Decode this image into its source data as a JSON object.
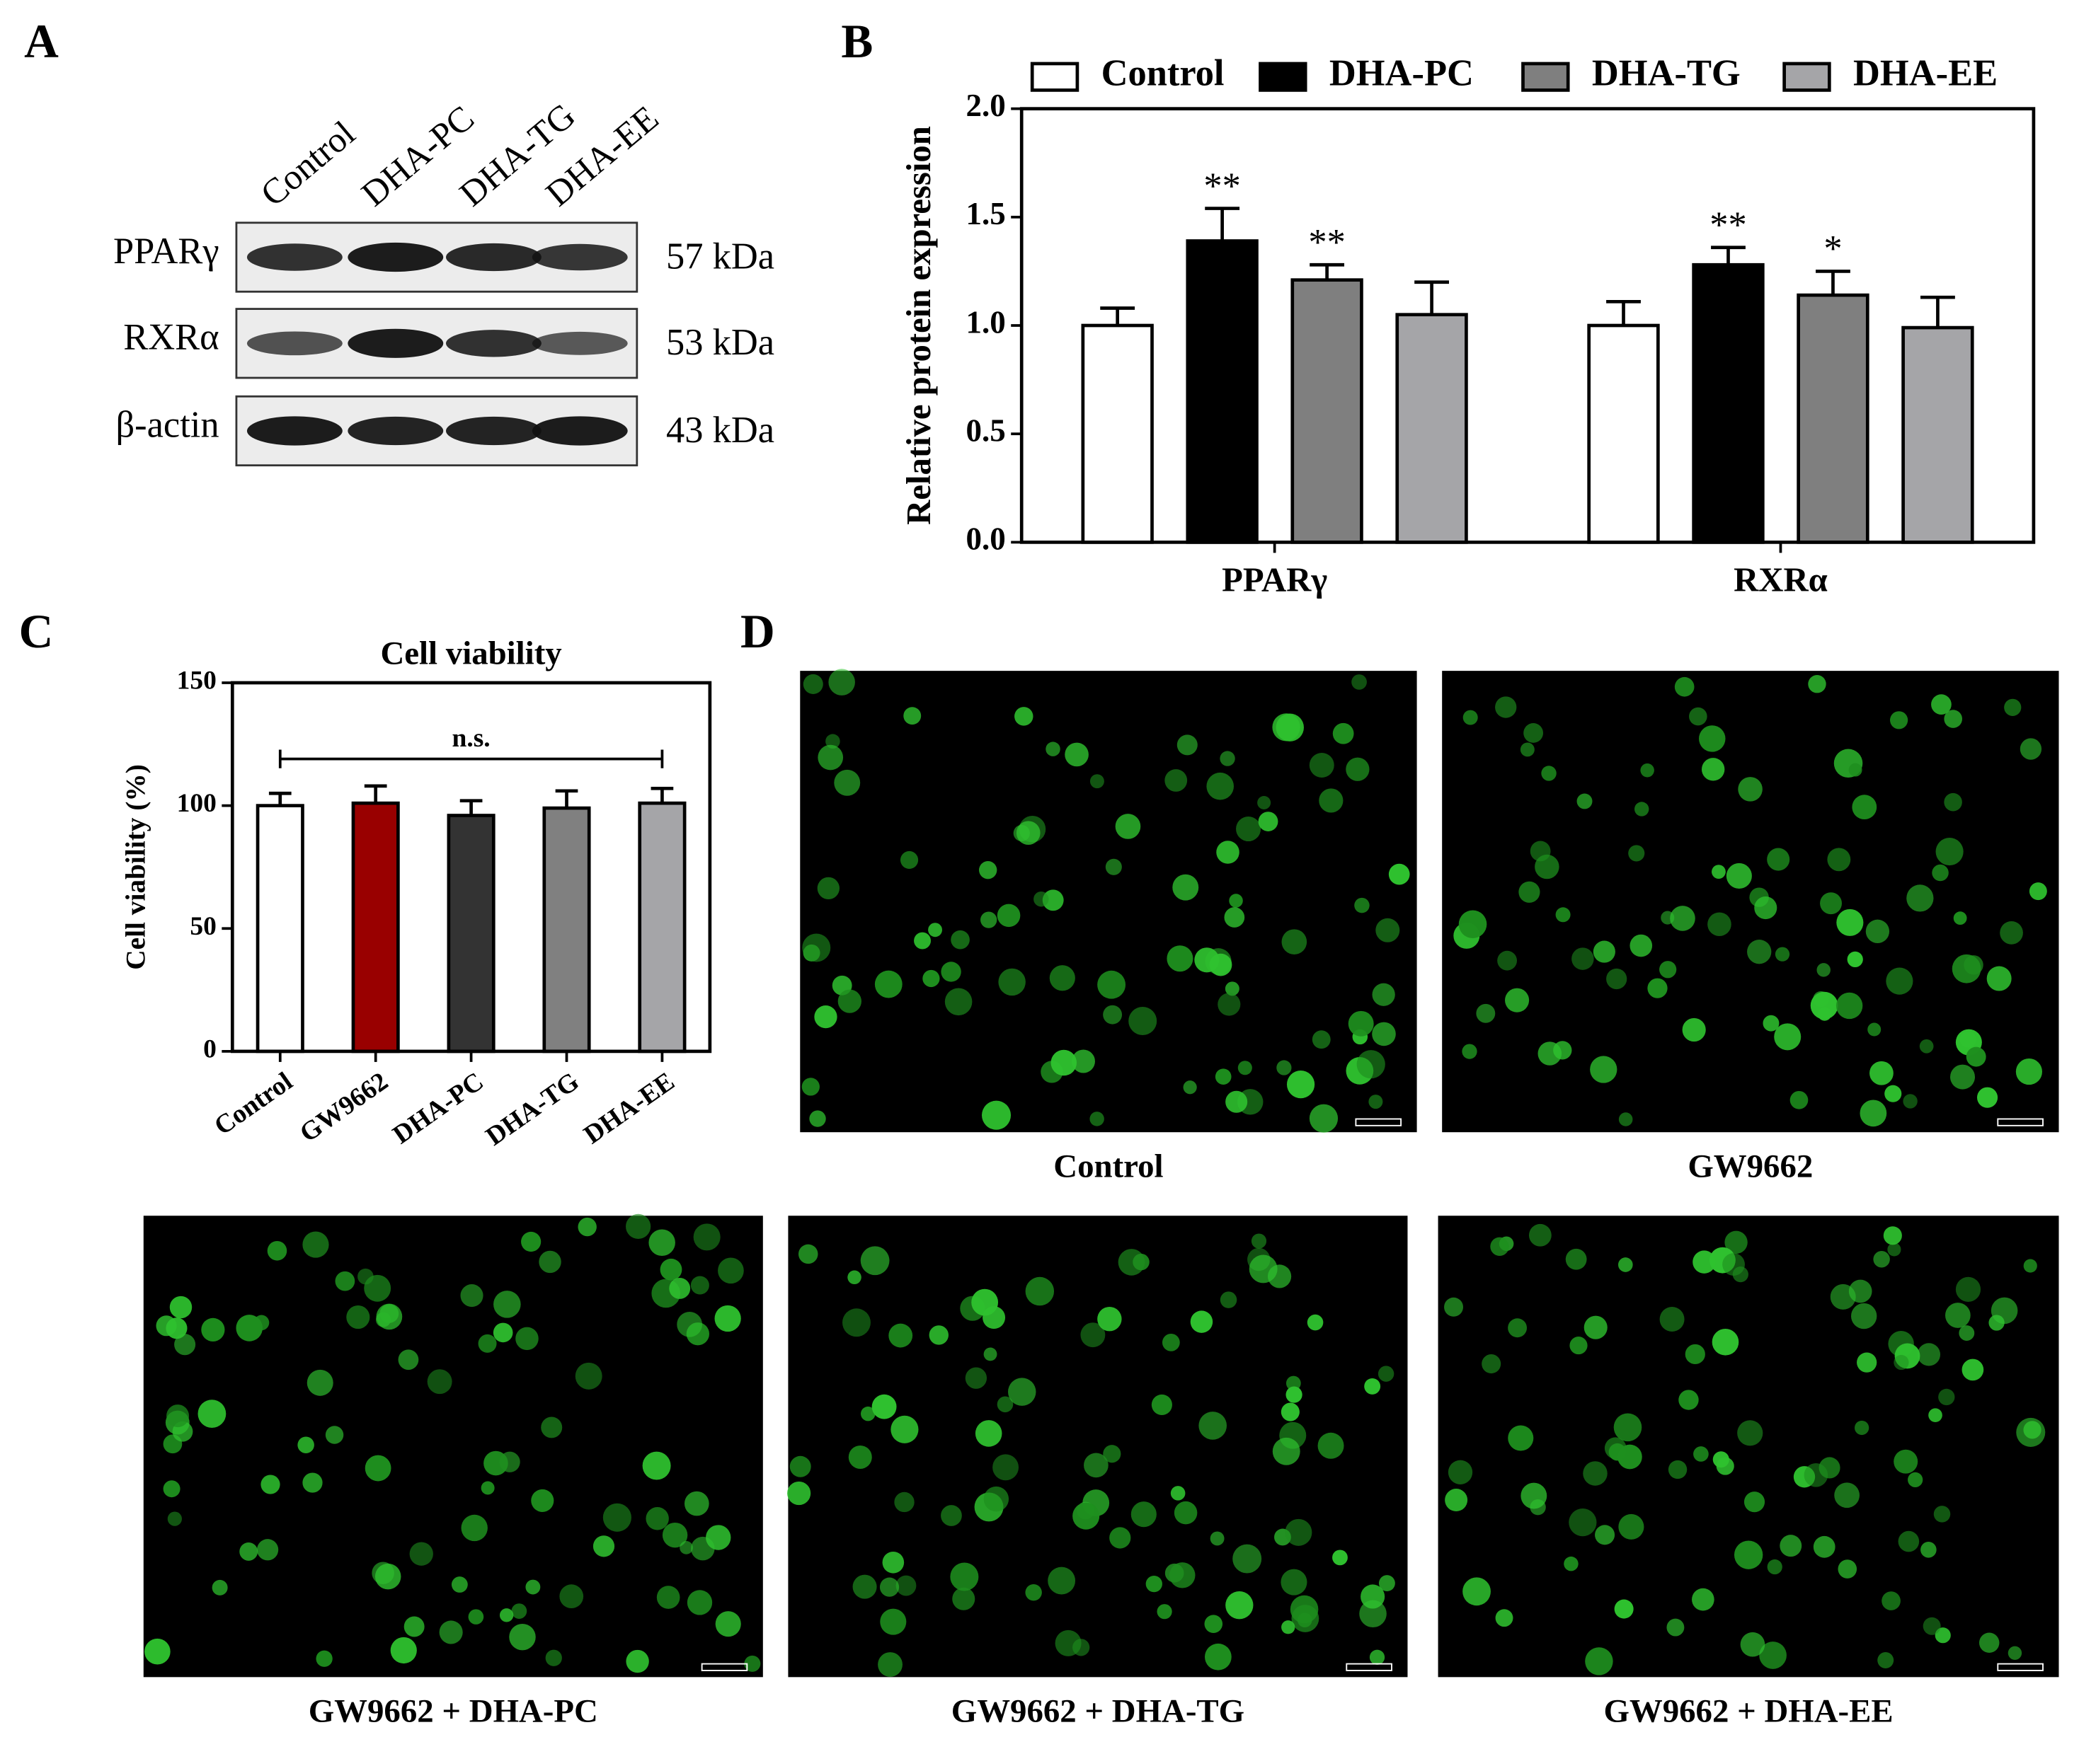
{
  "panel_labels": [
    "A",
    "B",
    "C",
    "D"
  ],
  "blot": {
    "lanes": [
      "Control",
      "DHA-PC",
      "DHA-TG",
      "DHA-EE"
    ],
    "rows": [
      {
        "protein": "PPARγ",
        "size": "57 kDa"
      },
      {
        "protein": "RXRα",
        "size": "53 kDa"
      },
      {
        "protein": "β-actin",
        "size": "43 kDa"
      }
    ]
  },
  "chart_data": [
    {
      "type": "bar",
      "y_label": "Relative protein expression",
      "categories": [
        "PPARγ",
        "RXRα"
      ],
      "series": [
        {
          "name": "Control",
          "color": "#ffffff",
          "values": [
            1.0,
            1.0
          ],
          "errors": [
            0.08,
            0.11
          ]
        },
        {
          "name": "DHA-PC",
          "color": "#000000",
          "values": [
            1.39,
            1.28
          ],
          "errors": [
            0.15,
            0.08
          ],
          "annotations": [
            "**",
            "**"
          ]
        },
        {
          "name": "DHA-TG",
          "color": "#7f7f7f",
          "values": [
            1.21,
            1.14
          ],
          "errors": [
            0.07,
            0.11
          ],
          "annotations": [
            "**",
            "*"
          ]
        },
        {
          "name": "DHA-EE",
          "color": "#a5a5a8",
          "values": [
            1.05,
            0.99
          ],
          "errors": [
            0.15,
            0.14
          ]
        }
      ],
      "ylim": [
        0,
        2
      ],
      "yticks": [
        {
          "value": 0,
          "label": "0.0"
        },
        {
          "value": 0.5,
          "label": "0.5"
        },
        {
          "value": 1,
          "label": "1.0"
        },
        {
          "value": 1.5,
          "label": "1.5"
        },
        {
          "value": 2,
          "label": "2.0"
        }
      ],
      "legend": "top"
    },
    {
      "type": "bar",
      "title": "Cell viability",
      "y_label": "Cell viability (%)",
      "categories": [
        "Control",
        "GW9662",
        "DHA-PC",
        "DHA-TG",
        "DHA-EE"
      ],
      "values": [
        100,
        101,
        96,
        99,
        101
      ],
      "errors": [
        5,
        7,
        6,
        7,
        6
      ],
      "colors": [
        "#ffffff",
        "#990000",
        "#333333",
        "#808080",
        "#a5a5a8"
      ],
      "bracket": {
        "text": "n.s.",
        "y": 119
      },
      "ylim": [
        0,
        150
      ],
      "yticks": [
        0,
        50,
        100,
        150
      ]
    }
  ],
  "micrographs": {
    "panels": [
      {
        "label": "Control"
      },
      {
        "label": "GW9662"
      },
      {
        "label": "GW9662 + DHA-PC"
      },
      {
        "label": "GW9662 + DHA-TG"
      },
      {
        "label": "GW9662 + DHA-EE"
      }
    ]
  }
}
